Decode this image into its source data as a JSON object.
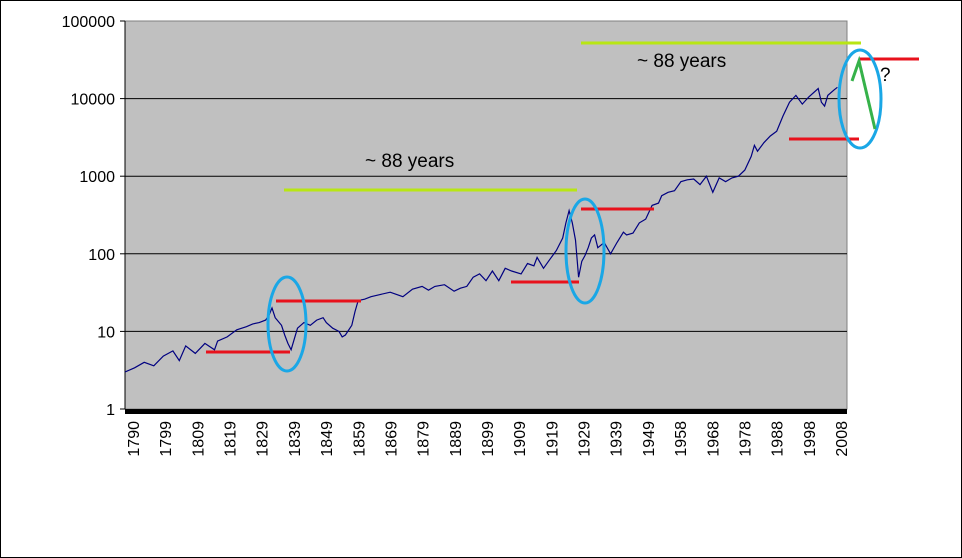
{
  "chart_data": {
    "type": "line",
    "scale": "log",
    "title": "",
    "xlabel": "",
    "ylabel": "",
    "grid": true,
    "legend": "none",
    "xlim": [
      1790,
      2016
    ],
    "ylim": [
      1,
      100000
    ],
    "y_ticks": [
      "1",
      "10",
      "100",
      "1000",
      "10000",
      "100000"
    ],
    "x_ticks": [
      "1790",
      "1799",
      "1809",
      "1819",
      "1829",
      "1839",
      "1849",
      "1859",
      "1869",
      "1879",
      "1889",
      "1899",
      "1909",
      "1919",
      "1929",
      "1939",
      "1949",
      "1958",
      "1968",
      "1978",
      "1988",
      "1998",
      "2008"
    ],
    "series": [
      {
        "color": "#000080",
        "points": [
          [
            1790,
            3.0
          ],
          [
            1793,
            3.4
          ],
          [
            1796,
            4.0
          ],
          [
            1799,
            3.6
          ],
          [
            1802,
            4.8
          ],
          [
            1805,
            5.6
          ],
          [
            1807,
            4.2
          ],
          [
            1809,
            6.5
          ],
          [
            1812,
            5.2
          ],
          [
            1815,
            7.0
          ],
          [
            1818,
            5.8
          ],
          [
            1819,
            7.5
          ],
          [
            1822,
            8.5
          ],
          [
            1825,
            10.5
          ],
          [
            1828,
            11.5
          ],
          [
            1830,
            12.5
          ],
          [
            1832,
            13.0
          ],
          [
            1834,
            14.0
          ],
          [
            1835,
            16.0
          ],
          [
            1836,
            20.0
          ],
          [
            1837,
            15.0
          ],
          [
            1839,
            12.0
          ],
          [
            1840,
            9.0
          ],
          [
            1841,
            7.0
          ],
          [
            1842,
            5.8
          ],
          [
            1843,
            8.0
          ],
          [
            1844,
            11.0
          ],
          [
            1846,
            13.0
          ],
          [
            1848,
            12.0
          ],
          [
            1850,
            14.0
          ],
          [
            1852,
            15.0
          ],
          [
            1853,
            13.0
          ],
          [
            1855,
            11.0
          ],
          [
            1857,
            10.0
          ],
          [
            1858,
            8.5
          ],
          [
            1859,
            9.0
          ],
          [
            1861,
            12.0
          ],
          [
            1862,
            18.0
          ],
          [
            1863,
            25.0
          ],
          [
            1865,
            26.0
          ],
          [
            1867,
            28.0
          ],
          [
            1870,
            30.0
          ],
          [
            1873,
            32.0
          ],
          [
            1875,
            30.0
          ],
          [
            1877,
            28.0
          ],
          [
            1880,
            35.0
          ],
          [
            1883,
            38.0
          ],
          [
            1885,
            34.0
          ],
          [
            1887,
            38.0
          ],
          [
            1890,
            40.0
          ],
          [
            1893,
            33.0
          ],
          [
            1895,
            36.0
          ],
          [
            1897,
            38.0
          ],
          [
            1899,
            50.0
          ],
          [
            1901,
            55.0
          ],
          [
            1903,
            45.0
          ],
          [
            1905,
            60.0
          ],
          [
            1907,
            45.0
          ],
          [
            1909,
            65.0
          ],
          [
            1911,
            60.0
          ],
          [
            1914,
            55.0
          ],
          [
            1916,
            75.0
          ],
          [
            1918,
            70.0
          ],
          [
            1919,
            90.0
          ],
          [
            1921,
            65.0
          ],
          [
            1923,
            85.0
          ],
          [
            1925,
            110.0
          ],
          [
            1927,
            160.0
          ],
          [
            1928,
            250.0
          ],
          [
            1929,
            360.0
          ],
          [
            1930,
            250.0
          ],
          [
            1931,
            150.0
          ],
          [
            1932,
            50.0
          ],
          [
            1933,
            80.0
          ],
          [
            1934,
            95.0
          ],
          [
            1935,
            120.0
          ],
          [
            1936,
            160.0
          ],
          [
            1937,
            175.0
          ],
          [
            1938,
            120.0
          ],
          [
            1940,
            140.0
          ],
          [
            1942,
            100.0
          ],
          [
            1944,
            140.0
          ],
          [
            1946,
            190.0
          ],
          [
            1947,
            175.0
          ],
          [
            1949,
            185.0
          ],
          [
            1951,
            250.0
          ],
          [
            1953,
            280.0
          ],
          [
            1955,
            420.0
          ],
          [
            1957,
            450.0
          ],
          [
            1958,
            560.0
          ],
          [
            1960,
            620.0
          ],
          [
            1962,
            650.0
          ],
          [
            1964,
            850.0
          ],
          [
            1966,
            900.0
          ],
          [
            1968,
            920.0
          ],
          [
            1970,
            780.0
          ],
          [
            1972,
            1000.0
          ],
          [
            1974,
            620.0
          ],
          [
            1976,
            950.0
          ],
          [
            1978,
            850.0
          ],
          [
            1980,
            950.0
          ],
          [
            1982,
            1000.0
          ],
          [
            1984,
            1200.0
          ],
          [
            1986,
            1800.0
          ],
          [
            1987,
            2500.0
          ],
          [
            1988,
            2100.0
          ],
          [
            1990,
            2700.0
          ],
          [
            1992,
            3300.0
          ],
          [
            1994,
            3800.0
          ],
          [
            1996,
            6000.0
          ],
          [
            1998,
            9000.0
          ],
          [
            2000,
            11000.0
          ],
          [
            2002,
            8500.0
          ],
          [
            2004,
            10500.0
          ],
          [
            2007,
            13500.0
          ],
          [
            2008,
            9000.0
          ],
          [
            2009,
            8000.0
          ],
          [
            2010,
            11000.0
          ],
          [
            2012,
            13000.0
          ],
          [
            2013,
            14000.0
          ]
        ]
      }
    ],
    "annotations": {
      "text_88_upper": "~ 88 years",
      "text_88_lower": "~ 88 years",
      "question": "?"
    }
  }
}
